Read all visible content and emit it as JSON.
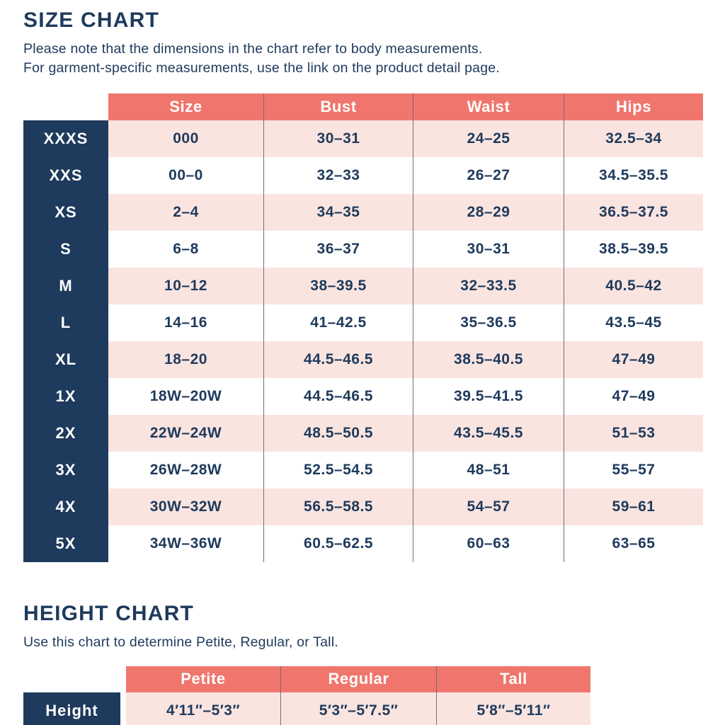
{
  "colors": {
    "navy": "#1e3a5c",
    "coral": "#f0766d",
    "pink": "#fae4e0",
    "separator": "#6f6f6f"
  },
  "size_chart": {
    "title": "SIZE CHART",
    "note_line1": "Please note that the dimensions in the chart refer to body measurements.",
    "note_line2": "For garment-specific measurements, use the link on the product detail page.",
    "columns": [
      "Size",
      "Bust",
      "Waist",
      "Hips"
    ],
    "rows": [
      [
        "XXXS",
        "000",
        "30–31",
        "24–25",
        "32.5–34"
      ],
      [
        "XXS",
        "00–0",
        "32–33",
        "26–27",
        "34.5–35.5"
      ],
      [
        "XS",
        "2–4",
        "34–35",
        "28–29",
        "36.5–37.5"
      ],
      [
        "S",
        "6–8",
        "36–37",
        "30–31",
        "38.5–39.5"
      ],
      [
        "M",
        "10–12",
        "38–39.5",
        "32–33.5",
        "40.5–42"
      ],
      [
        "L",
        "14–16",
        "41–42.5",
        "35–36.5",
        "43.5–45"
      ],
      [
        "XL",
        "18–20",
        "44.5–46.5",
        "38.5–40.5",
        "47–49"
      ],
      [
        "1X",
        "18W–20W",
        "44.5–46.5",
        "39.5–41.5",
        "47–49"
      ],
      [
        "2X",
        "22W–24W",
        "48.5–50.5",
        "43.5–45.5",
        "51–53"
      ],
      [
        "3X",
        "26W–28W",
        "52.5–54.5",
        "48–51",
        "55–57"
      ],
      [
        "4X",
        "30W–32W",
        "56.5–58.5",
        "54–57",
        "59–61"
      ],
      [
        "5X",
        "34W–36W",
        "60.5–62.5",
        "60–63",
        "63–65"
      ]
    ]
  },
  "height_chart": {
    "title": "HEIGHT CHART",
    "note": "Use this chart to determine Petite, Regular, or Tall.",
    "columns": [
      "Petite",
      "Regular",
      "Tall"
    ],
    "row_label": "Height",
    "values": [
      "4′11″–5′3″",
      "5′3″–5′7.5″",
      "5′8″–5′11″"
    ]
  }
}
